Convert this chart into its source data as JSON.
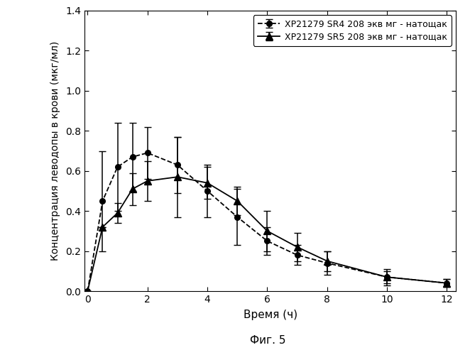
{
  "sr4_x": [
    0,
    0.5,
    1,
    1.5,
    2,
    3,
    4,
    5,
    6,
    7,
    8,
    10,
    12
  ],
  "sr4_y": [
    0.0,
    0.45,
    0.62,
    0.67,
    0.69,
    0.63,
    0.5,
    0.37,
    0.25,
    0.18,
    0.14,
    0.07,
    0.04
  ],
  "sr4_yerr": [
    0.0,
    0.25,
    0.22,
    0.17,
    0.13,
    0.14,
    0.13,
    0.14,
    0.07,
    0.05,
    0.06,
    0.04,
    0.02
  ],
  "sr5_x": [
    0,
    0.5,
    1,
    1.5,
    2,
    3,
    4,
    5,
    6,
    7,
    8,
    10,
    12
  ],
  "sr5_y": [
    0.0,
    0.32,
    0.39,
    0.51,
    0.55,
    0.57,
    0.54,
    0.45,
    0.3,
    0.22,
    0.15,
    0.07,
    0.04
  ],
  "sr5_yerr": [
    0.0,
    0.0,
    0.05,
    0.08,
    0.1,
    0.2,
    0.08,
    0.07,
    0.1,
    0.07,
    0.05,
    0.03,
    0.02
  ],
  "xlabel": "Время (ч)",
  "ylabel": "Концентрация леводопы в крови (мкг/мл)",
  "caption": "Фиг. 5",
  "legend_sr4": "XP21279 SR4 208 экв мг - натощак",
  "legend_sr5": "XP21279 SR5 208 экв мг - натощак",
  "ylim": [
    0,
    1.4
  ],
  "xlim": [
    -0.1,
    12.3
  ],
  "yticks": [
    0.0,
    0.2,
    0.4,
    0.6,
    0.8,
    1.0,
    1.2,
    1.4
  ],
  "xticks": [
    0,
    2,
    4,
    6,
    8,
    10,
    12
  ],
  "background_color": "#ffffff",
  "line_color": "#000000"
}
